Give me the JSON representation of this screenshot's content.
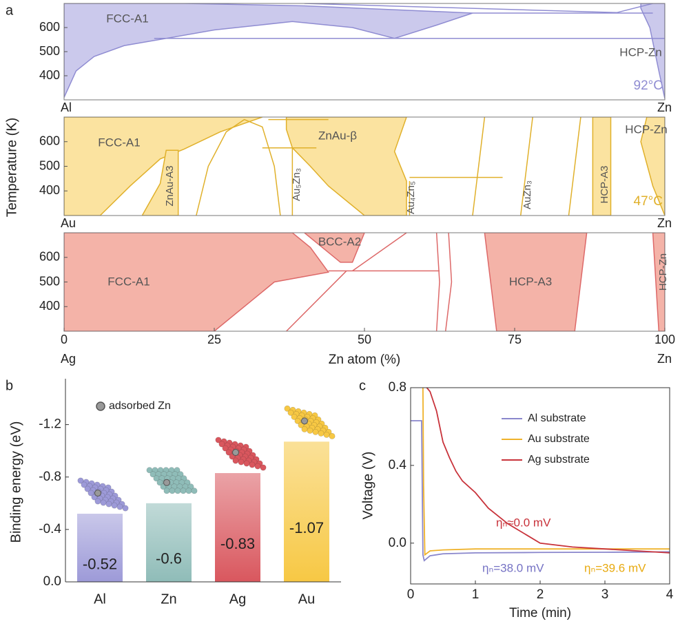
{
  "chart_data": [
    {
      "type": "phase",
      "panel_label": "a",
      "y_label": "Temperature (K)",
      "elements": [
        "Al",
        "Zn"
      ],
      "color": "#cbc9ec",
      "edge_color": "#8f8cd2",
      "temperature_label": "92°C",
      "labels": [
        "FCC-A1",
        "HCP-Zn"
      ],
      "xlim": [
        0,
        100
      ],
      "ylim": [
        300,
        700
      ],
      "yticks": [
        400,
        500,
        600
      ],
      "regions": [
        {
          "x": [
            0,
            2,
            5,
            10,
            17,
            25,
            38,
            48,
            55,
            62,
            68,
            40,
            20,
            0
          ],
          "y": [
            310,
            420,
            480,
            525,
            555,
            590,
            625,
            600,
            555,
            610,
            660,
            690,
            700,
            700
          ]
        },
        {
          "x": [
            96,
            100,
            100,
            99,
            97.5,
            96
          ],
          "y": [
            700,
            700,
            305,
            420,
            600,
            680
          ]
        }
      ],
      "lines": [
        {
          "x": [
            15,
            100
          ],
          "y": [
            555,
            555
          ]
        },
        {
          "x": [
            68,
            98
          ],
          "y": [
            660,
            660
          ]
        },
        {
          "x": [
            40,
            92,
            98
          ],
          "y": [
            700,
            662,
            700
          ]
        }
      ]
    },
    {
      "type": "phase",
      "elements": [
        "Au",
        "Zn"
      ],
      "color": "#fbe3a0",
      "edge_color": "#e0b02a",
      "temperature_label": "47°C",
      "labels": [
        "FCC-A1",
        "ZnAu-β",
        "HCP-Zn",
        "ZnAu-A3",
        "Au₅Zn₃",
        "Au₄Zn₅",
        "AuZn₃",
        "HCP-A3"
      ],
      "xlim": [
        0,
        100
      ],
      "ylim": [
        300,
        700
      ],
      "yticks": [
        400,
        500,
        600
      ],
      "regions": [
        {
          "x": [
            0,
            6,
            11,
            16,
            20,
            26,
            33,
            0
          ],
          "y": [
            300,
            300,
            420,
            530,
            570,
            640,
            700,
            700
          ]
        },
        {
          "x": [
            13,
            16,
            17,
            19,
            19
          ],
          "y": [
            300,
            430,
            565,
            565,
            300
          ]
        },
        {
          "x": [
            37,
            57,
            55,
            57,
            57,
            50,
            44,
            41,
            38,
            37
          ],
          "y": [
            700,
            700,
            560,
            440,
            300,
            300,
            420,
            500,
            575,
            650
          ]
        },
        {
          "x": [
            88,
            88,
            91,
            91
          ],
          "y": [
            300,
            700,
            700,
            300
          ]
        },
        {
          "x": [
            97,
            100,
            100,
            98,
            96
          ],
          "y": [
            700,
            700,
            300,
            420,
            600
          ]
        }
      ],
      "lines": [
        {
          "x": [
            33,
            42
          ],
          "y": [
            575,
            575
          ]
        },
        {
          "x": [
            38,
            38
          ],
          "y": [
            300,
            575
          ]
        },
        {
          "x": [
            57.5,
            57.5
          ],
          "y": [
            300,
            440
          ]
        },
        {
          "x": [
            57.5,
            73
          ],
          "y": [
            455,
            455
          ]
        },
        {
          "x": [
            68,
            70
          ],
          "y": [
            300,
            700
          ]
        },
        {
          "x": [
            76,
            78
          ],
          "y": [
            300,
            700
          ]
        },
        {
          "x": [
            84,
            86
          ],
          "y": [
            300,
            700
          ]
        },
        {
          "x": [
            34,
            44
          ],
          "y": [
            690,
            690
          ]
        },
        {
          "x": [
            22,
            24,
            27,
            30,
            33,
            35,
            36
          ],
          "y": [
            300,
            500,
            640,
            690,
            660,
            500,
            300
          ]
        }
      ]
    },
    {
      "type": "phase",
      "elements": [
        "Ag",
        "Zn"
      ],
      "color": "#f4b3a8",
      "edge_color": "#dd6868",
      "x_label": "Zn atom (%)",
      "labels": [
        "FCC-A1",
        "BCC-A2",
        "HCP-A3",
        "HCP-Zn"
      ],
      "xlim": [
        0,
        100
      ],
      "ylim": [
        300,
        700
      ],
      "yticks": [
        400,
        500,
        600
      ],
      "xticks": [
        0,
        25,
        50,
        75,
        100
      ],
      "regions": [
        {
          "x": [
            0,
            0,
            38,
            41,
            44,
            35,
            25
          ],
          "y": [
            300,
            700,
            700,
            640,
            540,
            500,
            300
          ]
        },
        {
          "x": [
            40,
            50,
            48,
            46
          ],
          "y": [
            700,
            700,
            580,
            580
          ]
        },
        {
          "x": [
            70,
            87,
            86,
            85,
            72,
            71
          ],
          "y": [
            700,
            700,
            500,
            300,
            300,
            500
          ]
        },
        {
          "x": [
            98,
            100,
            100,
            99
          ],
          "y": [
            700,
            700,
            300,
            300
          ]
        }
      ],
      "lines": [
        {
          "x": [
            62,
            62.5,
            62
          ],
          "y": [
            300,
            500,
            700
          ]
        },
        {
          "x": [
            63.5,
            64.5,
            64
          ],
          "y": [
            300,
            500,
            700
          ]
        },
        {
          "x": [
            44,
            62.5
          ],
          "y": [
            545,
            545
          ]
        },
        {
          "x": [
            48,
            57
          ],
          "y": [
            545,
            700
          ]
        },
        {
          "x": [
            37,
            47
          ],
          "y": [
            300,
            545
          ]
        }
      ]
    },
    {
      "type": "bar",
      "panel_label": "b",
      "y_label": "Binding energy (eV)",
      "legend": "adsorbed Zn",
      "categories": [
        "Al",
        "Zn",
        "Ag",
        "Au"
      ],
      "values": [
        -0.52,
        -0.6,
        -0.83,
        -1.07
      ],
      "colors": [
        "#9d9ad8",
        "#8fbcb8",
        "#d9575e",
        "#f7c844"
      ],
      "ylim": [
        0,
        -1.55
      ],
      "yticks": [
        {
          "value": 0,
          "label": "0.0"
        },
        -0.4,
        -0.8,
        -1.2
      ]
    },
    {
      "type": "line",
      "panel_label": "c",
      "x_label": "Time (min)",
      "y_label": "Voltage (V)",
      "xlim": [
        0,
        4
      ],
      "xticks": [
        0,
        1,
        2,
        3,
        4
      ],
      "ylim": [
        -0.21,
        0.8
      ],
      "yticks": [
        {
          "value": 0,
          "label": "0.0"
        },
        0.4,
        0.8
      ],
      "series": [
        {
          "name": "Al substrate",
          "color": "#8986cc",
          "x": [
            0,
            0.17,
            0.19,
            0.21,
            0.3,
            0.5,
            1,
            2,
            3,
            4
          ],
          "values": [
            0.63,
            0.63,
            -0.06,
            -0.09,
            -0.065,
            -0.055,
            -0.05,
            -0.048,
            -0.047,
            -0.045
          ]
        },
        {
          "name": "Au substrate",
          "color": "#efb22a",
          "x": [
            0.19,
            0.2,
            0.22,
            0.3,
            0.5,
            1,
            2,
            3,
            4
          ],
          "values": [
            0.8,
            0.3,
            -0.06,
            -0.04,
            -0.035,
            -0.03,
            -0.03,
            -0.03,
            -0.03
          ]
        },
        {
          "name": "Ag substrate",
          "color": "#c8323a",
          "x": [
            0.25,
            0.3,
            0.4,
            0.5,
            0.6,
            0.7,
            0.8,
            1.0,
            1.2,
            1.5,
            1.8,
            2.0,
            2.5,
            3,
            4
          ],
          "values": [
            0.8,
            0.78,
            0.68,
            0.52,
            0.44,
            0.37,
            0.32,
            0.26,
            0.18,
            0.1,
            0.04,
            0.0,
            -0.02,
            -0.03,
            -0.05
          ]
        }
      ],
      "annotations": [
        {
          "text": "ηₙ≈0.0 mV",
          "color": "#c8323a"
        },
        {
          "text": "ηₙ=38.0 mV",
          "color": "#7572c4"
        },
        {
          "text": "ηₙ=39.6 mV",
          "color": "#e8aa10"
        }
      ]
    }
  ]
}
